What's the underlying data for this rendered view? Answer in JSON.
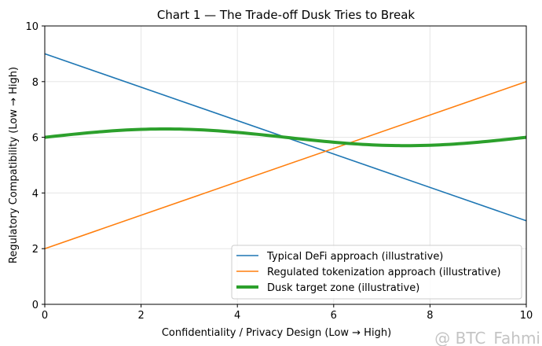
{
  "chart_data": {
    "type": "line",
    "title": "Chart 1 — The Trade-off Dusk Tries to Break",
    "xlabel": "Confidentiality / Privacy Design (Low → High)",
    "ylabel": "Regulatory Compatibility (Low → High)",
    "xlim": [
      0,
      10
    ],
    "ylim": [
      0,
      10
    ],
    "xticks": [
      0,
      2,
      4,
      6,
      8,
      10
    ],
    "yticks": [
      0,
      2,
      4,
      6,
      8,
      10
    ],
    "grid": true,
    "legend_position": "bottom-right",
    "series": [
      {
        "name": "Typical DeFi approach (illustrative)",
        "color": "#1f77b4",
        "x": [
          0,
          10
        ],
        "y": [
          9,
          3
        ]
      },
      {
        "name": "Regulated tokenization approach (illustrative)",
        "color": "#ff7f0e",
        "x": [
          0,
          10
        ],
        "y": [
          2,
          8
        ]
      },
      {
        "name": "Dusk target zone (illustrative)",
        "color": "#2ca02c",
        "x": [
          0,
          1,
          2,
          2.5,
          3,
          4,
          5,
          6,
          7,
          7.5,
          8,
          9,
          10
        ],
        "y": [
          6.0,
          6.18,
          6.29,
          6.3,
          6.29,
          6.18,
          6.0,
          5.82,
          5.71,
          5.7,
          5.71,
          5.82,
          6.0
        ]
      }
    ]
  },
  "watermark": "@ BTC_Fahmi"
}
